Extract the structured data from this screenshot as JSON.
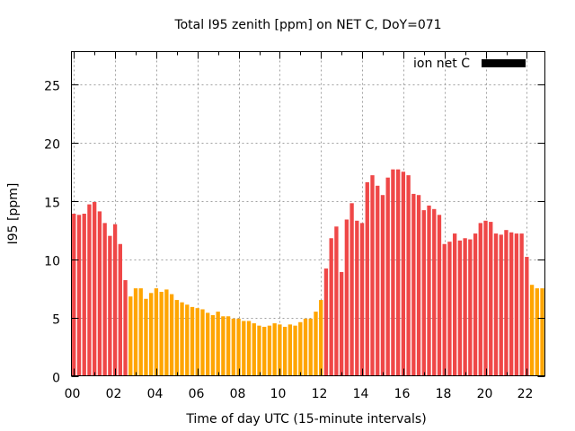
{
  "chart_data": {
    "type": "bar",
    "title": "Total I95 zenith [ppm] on NET C, DoY=071",
    "xlabel": "Time of day UTC (15-minute intervals)",
    "ylabel": "I95 [ppm]",
    "ylim": [
      0,
      27.8
    ],
    "yticks": [
      0,
      5,
      10,
      15,
      20,
      25
    ],
    "ytick_labels": [
      "0",
      "5",
      "10",
      "15",
      "20",
      "25"
    ],
    "xtick_labels": [
      "00",
      "02",
      "04",
      "06",
      "08",
      "10",
      "12",
      "14",
      "16",
      "18",
      "20",
      "22"
    ],
    "xtick_slot_step": 8,
    "slots_per_hour": 4,
    "grid": true,
    "legend": {
      "label": "ion net C",
      "placement": "top-right",
      "swatch_color": "#000000"
    },
    "colors": {
      "high": "#ef4747",
      "low": "#ffa500"
    },
    "values": [
      13.9,
      13.8,
      13.9,
      14.7,
      14.9,
      14.1,
      13.1,
      12.0,
      13.0,
      11.3,
      8.2,
      6.8,
      7.5,
      7.5,
      6.6,
      7.1,
      7.5,
      7.2,
      7.4,
      7.0,
      6.5,
      6.3,
      6.1,
      5.9,
      5.8,
      5.7,
      5.4,
      5.2,
      5.5,
      5.1,
      5.1,
      4.9,
      4.9,
      4.7,
      4.7,
      4.5,
      4.3,
      4.2,
      4.3,
      4.5,
      4.4,
      4.2,
      4.4,
      4.3,
      4.6,
      4.9,
      4.9,
      5.5,
      6.5,
      9.2,
      11.8,
      12.8,
      8.9,
      13.4,
      14.8,
      13.3,
      13.1,
      16.6,
      17.2,
      16.3,
      15.5,
      17.0,
      17.7,
      17.7,
      17.5,
      17.2,
      15.6,
      15.5,
      14.2,
      14.6,
      14.3,
      13.8,
      11.3,
      11.5,
      12.2,
      11.6,
      11.8,
      11.7,
      12.2,
      13.1,
      13.3,
      13.2,
      12.2,
      12.1,
      12.5,
      12.3,
      12.2,
      12.2,
      10.2,
      7.8,
      7.5,
      7.5
    ],
    "bar_color_class": [
      "high",
      "high",
      "high",
      "high",
      "high",
      "high",
      "high",
      "high",
      "high",
      "high",
      "high",
      "low",
      "low",
      "low",
      "low",
      "low",
      "low",
      "low",
      "low",
      "low",
      "low",
      "low",
      "low",
      "low",
      "low",
      "low",
      "low",
      "low",
      "low",
      "low",
      "low",
      "low",
      "low",
      "low",
      "low",
      "low",
      "low",
      "low",
      "low",
      "low",
      "low",
      "low",
      "low",
      "low",
      "low",
      "low",
      "low",
      "low",
      "low",
      "high",
      "high",
      "high",
      "high",
      "high",
      "high",
      "high",
      "high",
      "high",
      "high",
      "high",
      "high",
      "high",
      "high",
      "high",
      "high",
      "high",
      "high",
      "high",
      "high",
      "high",
      "high",
      "high",
      "high",
      "high",
      "high",
      "high",
      "high",
      "high",
      "high",
      "high",
      "high",
      "high",
      "high",
      "high",
      "high",
      "high",
      "high",
      "high",
      "high",
      "low",
      "low",
      "low"
    ]
  }
}
